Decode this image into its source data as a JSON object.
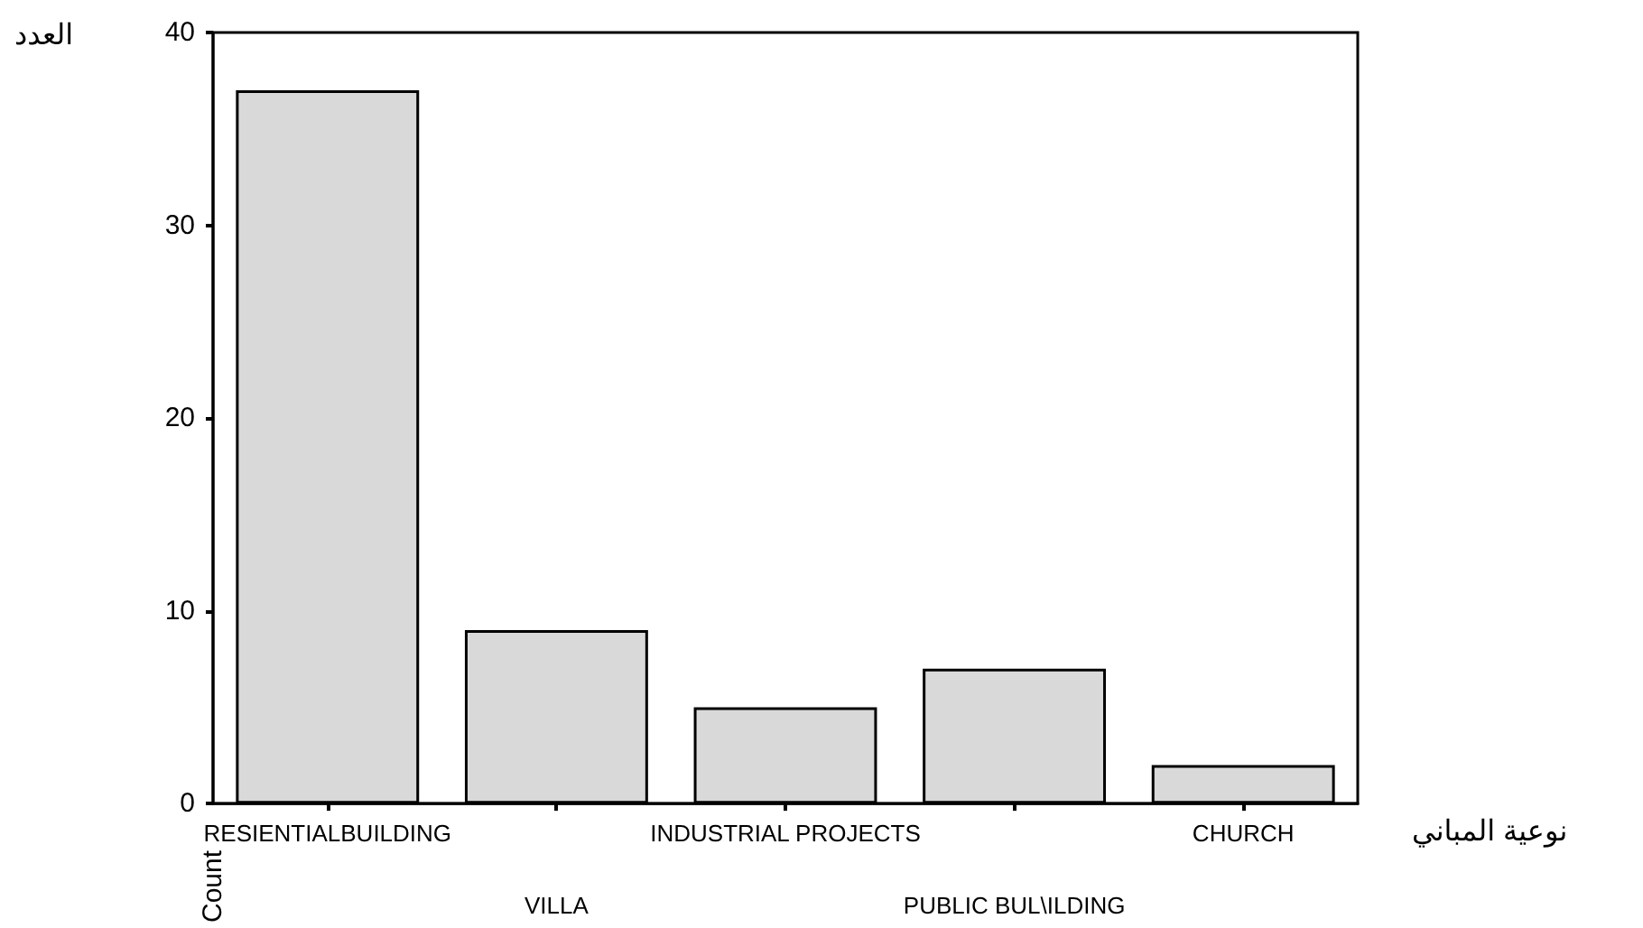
{
  "chart_data": {
    "type": "bar",
    "xlabel": "نوعية المباني",
    "ylabel": "Count",
    "annotations": [
      "العدد"
    ],
    "categories": [
      "RESIENTIALBUILDING",
      "VILLA",
      "INDUSTRIAL PROJECTS",
      "PUBLIC BUL\\ILDING",
      "CHURCH"
    ],
    "values": [
      37,
      9,
      5,
      7,
      2
    ],
    "color": "#d9d9d9",
    "ylim": [
      0,
      40
    ],
    "yticks": [
      0,
      10,
      20,
      30,
      40
    ],
    "grid": false
  }
}
